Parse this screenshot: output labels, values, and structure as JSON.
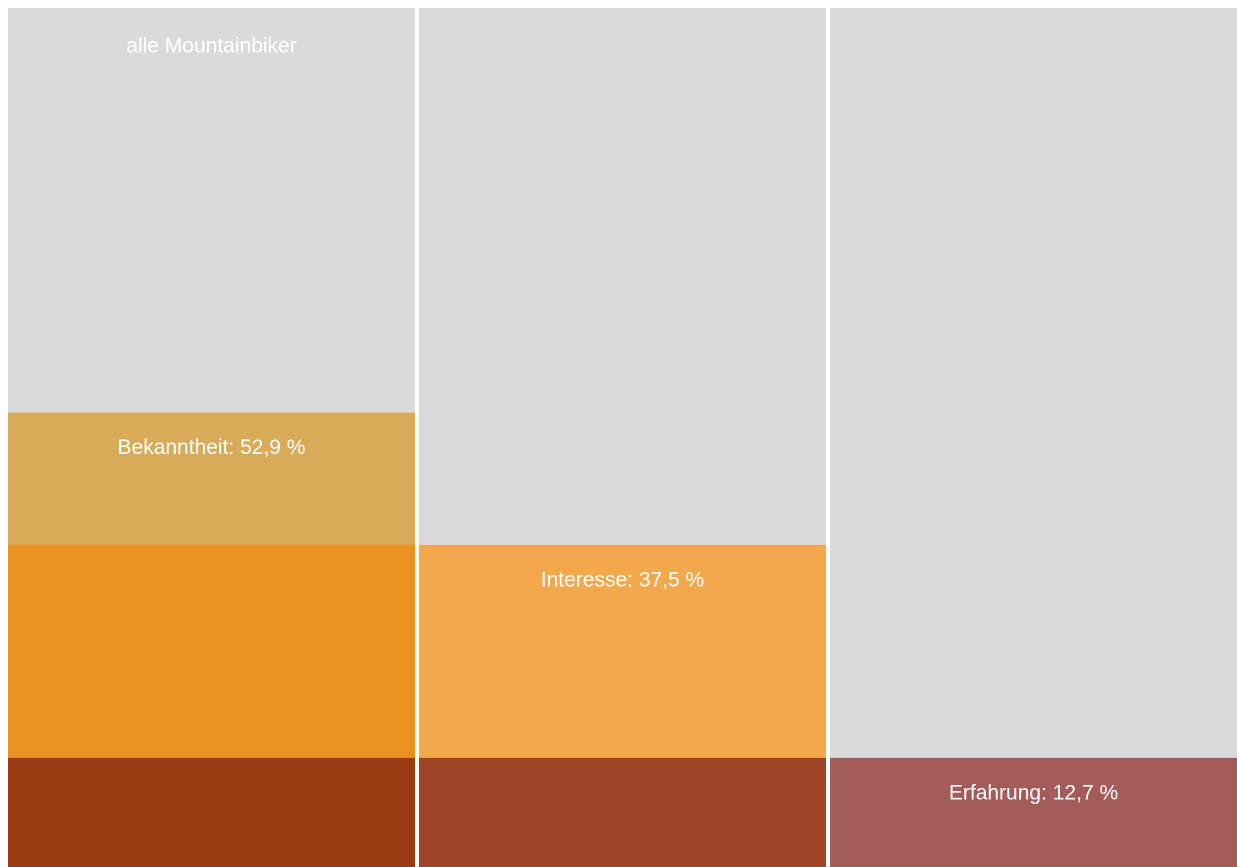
{
  "chart_data": {
    "type": "bar",
    "total_label": "alle Mountainbiker",
    "values": [
      52.9,
      37.5,
      12.7
    ],
    "value_labels": [
      "Bekanntheit: 52,9 %",
      "Interesse: 37,5 %",
      "Erfahrung: 12,7 %"
    ],
    "background_color": "#dadada",
    "colors": [
      [
        "#d8ab58",
        "#ea921f",
        "#993a12"
      ],
      [
        null,
        "#f3a84b",
        "#a04427"
      ],
      [
        null,
        null,
        "#a35c5a"
      ]
    ],
    "ylim": [
      0,
      100
    ]
  }
}
